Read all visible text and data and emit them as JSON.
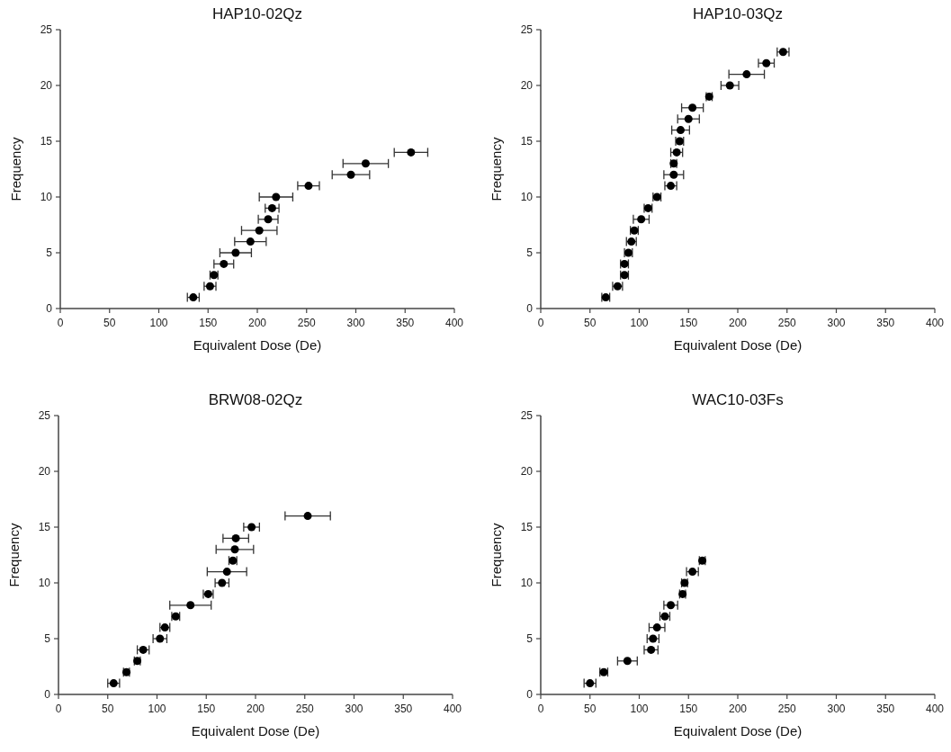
{
  "chart_data": [
    {
      "type": "scatter",
      "title": "HAP10-02Qz",
      "xlabel": "Equivalent Dose (De)",
      "ylabel": "Frequency",
      "marker": "circle",
      "grid": false,
      "xlim": [
        0,
        400
      ],
      "xticks": [
        0,
        50,
        100,
        150,
        200,
        250,
        300,
        350,
        400
      ],
      "ylim": [
        0,
        25
      ],
      "yticks": [
        0,
        5,
        10,
        15,
        20,
        25
      ],
      "series": [
        {
          "color": "#000000",
          "x": [
            135,
            152,
            156,
            166,
            178,
            193,
            202,
            211,
            215,
            219,
            252,
            295,
            310,
            356
          ],
          "values": [
            1,
            2,
            3,
            4,
            5,
            6,
            7,
            8,
            9,
            10,
            11,
            12,
            13,
            14
          ],
          "xerrors": [
            6,
            6,
            4,
            10,
            16,
            16,
            18,
            10,
            7,
            17,
            11,
            19,
            23,
            17
          ]
        }
      ]
    },
    {
      "type": "scatter",
      "title": "HAP10-03Qz",
      "xlabel": "Equivalent Dose (De)",
      "ylabel": "Frequency",
      "marker": "circle",
      "grid": false,
      "xlim": [
        0,
        400
      ],
      "xticks": [
        0,
        50,
        100,
        150,
        200,
        250,
        300,
        350,
        400
      ],
      "ylim": [
        0,
        25
      ],
      "yticks": [
        0,
        5,
        10,
        15,
        20,
        25
      ],
      "series": [
        {
          "color": "#000000",
          "x": [
            66,
            78,
            85,
            85,
            89,
            92,
            95,
            102,
            109,
            118,
            132,
            135,
            135,
            138,
            141,
            142,
            150,
            154,
            171,
            192,
            209,
            229,
            246
          ],
          "values": [
            1,
            2,
            3,
            4,
            5,
            6,
            7,
            8,
            9,
            10,
            11,
            12,
            13,
            14,
            15,
            16,
            17,
            18,
            19,
            20,
            21,
            22,
            23
          ],
          "xerrors": [
            4,
            5,
            4,
            4,
            4,
            5,
            4,
            8,
            4,
            4,
            6,
            10,
            3,
            6,
            4,
            9,
            11,
            11,
            3,
            9,
            18,
            8,
            6
          ]
        }
      ]
    },
    {
      "type": "scatter",
      "title": "BRW08-02Qz",
      "xlabel": "Equivalent Dose (De)",
      "ylabel": "Frequency",
      "marker": "circle",
      "grid": false,
      "xlim": [
        0,
        400
      ],
      "xticks": [
        0,
        50,
        100,
        150,
        200,
        250,
        300,
        350,
        400
      ],
      "ylim": [
        0,
        25
      ],
      "yticks": [
        0,
        5,
        10,
        15,
        20,
        25
      ],
      "series": [
        {
          "color": "#000000",
          "x": [
            56,
            69,
            80,
            86,
            103,
            108,
            119,
            134,
            152,
            166,
            171,
            177,
            179,
            180,
            196,
            253
          ],
          "values": [
            1,
            2,
            3,
            4,
            5,
            6,
            7,
            8,
            9,
            10,
            11,
            12,
            13,
            14,
            15,
            16
          ],
          "xerrors": [
            6,
            3,
            3,
            6,
            7,
            5,
            4,
            21,
            5,
            7,
            20,
            4,
            19,
            13,
            8,
            23
          ]
        }
      ]
    },
    {
      "type": "scatter",
      "title": "WAC10-03Fs",
      "xlabel": "Equivalent Dose (De)",
      "ylabel": "Frequency",
      "marker": "circle",
      "grid": false,
      "xlim": [
        0,
        400
      ],
      "xticks": [
        0,
        50,
        100,
        150,
        200,
        250,
        300,
        350,
        400
      ],
      "ylim": [
        0,
        25
      ],
      "yticks": [
        0,
        5,
        10,
        15,
        20,
        25
      ],
      "series": [
        {
          "color": "#000000",
          "x": [
            50,
            64,
            88,
            112,
            114,
            118,
            126,
            132,
            144,
            146,
            154,
            164
          ],
          "values": [
            1,
            2,
            3,
            4,
            5,
            6,
            7,
            8,
            9,
            10,
            11,
            12
          ],
          "xerrors": [
            6,
            4,
            10,
            7,
            6,
            8,
            5,
            7,
            3,
            3,
            6,
            3
          ]
        }
      ]
    }
  ]
}
